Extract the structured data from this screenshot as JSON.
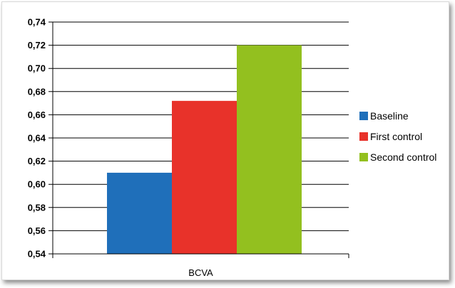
{
  "chart_data": {
    "type": "bar",
    "title": "",
    "xlabel": "",
    "ylabel": "",
    "categories": [
      "BCVA"
    ],
    "series": [
      {
        "name": "Baseline",
        "values": [
          0.61
        ],
        "color": "#1f6fba"
      },
      {
        "name": "First control",
        "values": [
          0.672
        ],
        "color": "#e8322a"
      },
      {
        "name": "Second control",
        "values": [
          0.72
        ],
        "color": "#93c01f"
      }
    ],
    "ylim": [
      0.54,
      0.74
    ],
    "yticks": [
      0.54,
      0.56,
      0.58,
      0.6,
      0.62,
      0.64,
      0.66,
      0.68,
      0.7,
      0.72,
      0.74
    ],
    "ytick_labels": [
      "0,54",
      "0,56",
      "0,58",
      "0,60",
      "0,62",
      "0,64",
      "0,66",
      "0,68",
      "0,70",
      "0,72",
      "0,74"
    ],
    "grid": true,
    "legend_position": "right"
  }
}
